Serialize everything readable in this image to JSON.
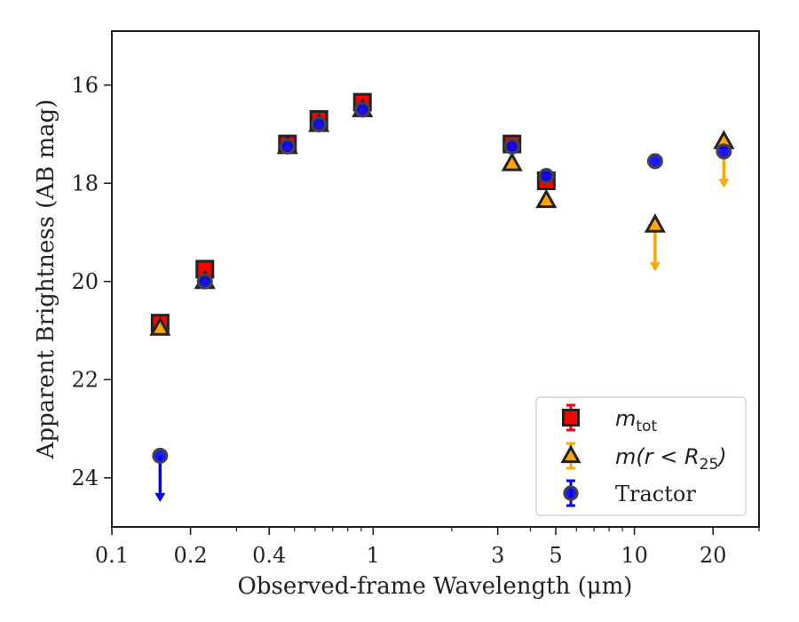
{
  "chart_data": {
    "type": "scatter",
    "title": "",
    "xlabel": "Observed-frame Wavelength (μm)",
    "ylabel": "Apparent Brightness (AB mag)",
    "xscale": "log",
    "xlim": [
      0.1,
      30
    ],
    "ylim": [
      25.0,
      14.9
    ],
    "y_inverted": true,
    "x_ticks": [
      0.1,
      0.2,
      0.4,
      1,
      3,
      5,
      10,
      20
    ],
    "x_tick_labels": [
      "0.1",
      "0.2",
      "0.4",
      "1",
      "3",
      "5",
      "10",
      "20"
    ],
    "y_ticks": [
      16,
      18,
      20,
      22,
      24
    ],
    "y_tick_labels": [
      "16",
      "18",
      "20",
      "22",
      "24"
    ],
    "grid": false,
    "legend_position": "bottom-right",
    "series": [
      {
        "name": "m_tot",
        "legend": {
          "main": "m",
          "sub": "tot"
        },
        "marker": "square",
        "color": "#ff0000",
        "edge": "#222222",
        "points": [
          {
            "x": 0.153,
            "y": 20.85
          },
          {
            "x": 0.227,
            "y": 19.75
          },
          {
            "x": 0.47,
            "y": 17.2
          },
          {
            "x": 0.62,
            "y": 16.7
          },
          {
            "x": 0.91,
            "y": 16.35
          },
          {
            "x": 3.4,
            "y": 17.2
          },
          {
            "x": 4.6,
            "y": 17.95
          }
        ]
      },
      {
        "name": "m(r < R25)",
        "legend": {
          "main": "m(r < R",
          "sub": "25",
          "end": ")"
        },
        "marker": "triangle",
        "color": "#ffa500",
        "edge": "#222222",
        "points": [
          {
            "x": 0.153,
            "y": 20.95
          },
          {
            "x": 0.227,
            "y": 20.0
          },
          {
            "x": 0.47,
            "y": 17.25
          },
          {
            "x": 0.62,
            "y": 16.8
          },
          {
            "x": 0.91,
            "y": 16.5
          },
          {
            "x": 3.4,
            "y": 17.6
          },
          {
            "x": 4.6,
            "y": 18.35
          },
          {
            "x": 12.0,
            "y": 18.85,
            "upper_limit": true
          },
          {
            "x": 22.0,
            "y": 17.15,
            "upper_limit": true
          }
        ]
      },
      {
        "name": "Tractor",
        "legend": {
          "main": "Tractor"
        },
        "marker": "circle",
        "color": "#0000ff",
        "edge": "#444444",
        "points": [
          {
            "x": 0.153,
            "y": 23.55,
            "upper_limit": true
          },
          {
            "x": 0.227,
            "y": 20.0
          },
          {
            "x": 0.47,
            "y": 17.25
          },
          {
            "x": 0.62,
            "y": 16.8
          },
          {
            "x": 0.91,
            "y": 16.5
          },
          {
            "x": 3.4,
            "y": 17.25
          },
          {
            "x": 4.6,
            "y": 17.85
          },
          {
            "x": 12.0,
            "y": 17.55
          },
          {
            "x": 22.0,
            "y": 17.35
          }
        ]
      }
    ]
  }
}
